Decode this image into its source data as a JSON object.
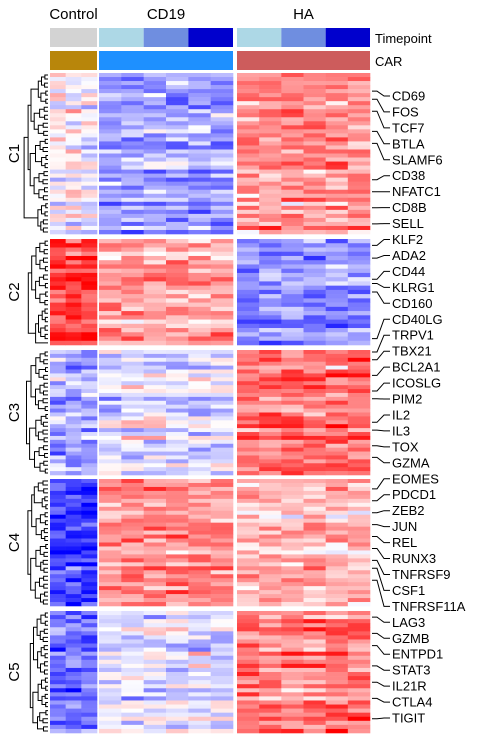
{
  "chart_data": {
    "type": "heatmap",
    "title": "",
    "column_groups": [
      {
        "label": "Control",
        "columns": 3,
        "car": "control"
      },
      {
        "label": "CD19",
        "columns": 6,
        "car": "CD19"
      },
      {
        "label": "HA",
        "columns": 6,
        "car": "HA"
      }
    ],
    "annotation_tracks": [
      {
        "label": "Timepoint",
        "values": [
          "none",
          "early",
          "mid",
          "late",
          "early",
          "mid",
          "late"
        ]
      },
      {
        "label": "CAR",
        "values": [
          "Control",
          "CD19",
          "HA"
        ]
      }
    ],
    "annotation_colors": {
      "timepoint": {
        "none": "#d3d3d3",
        "early": "#add8e6",
        "mid": "#6f8ee0",
        "late": "#0000cd"
      },
      "car": {
        "Control": "#b8860b",
        "CD19": "#1e90ff",
        "HA": "#cd5c5c"
      }
    },
    "color_scale": {
      "low": "#0000ff",
      "mid": "#ffffff",
      "high": "#ff0000"
    },
    "clusters": [
      {
        "label": "C1",
        "rows": 40,
        "pattern": {
          "control": 0.0,
          "CD19": -0.35,
          "HA": 0.45
        }
      },
      {
        "label": "C2",
        "rows": 25,
        "pattern": {
          "control": 0.75,
          "CD19": 0.35,
          "HA": -0.45
        }
      },
      {
        "label": "C3",
        "rows": 32,
        "pattern": {
          "control": -0.35,
          "CD19": -0.15,
          "HA": 0.55
        }
      },
      {
        "label": "C4",
        "rows": 32,
        "pattern": {
          "control": -0.75,
          "CD19": 0.45,
          "HA": 0.3
        }
      },
      {
        "label": "C5",
        "rows": 30,
        "pattern": {
          "control": -0.55,
          "CD19": -0.1,
          "HA": 0.55
        }
      }
    ],
    "gene_labels": [
      {
        "name": "CD69",
        "cluster": 0,
        "row": 4
      },
      {
        "name": "FOS",
        "cluster": 0,
        "row": 6
      },
      {
        "name": "TCF7",
        "cluster": 0,
        "row": 9
      },
      {
        "name": "BTLA",
        "cluster": 0,
        "row": 14
      },
      {
        "name": "SLAMF6",
        "cluster": 0,
        "row": 17
      },
      {
        "name": "CD38",
        "cluster": 0,
        "row": 26
      },
      {
        "name": "NFATC1",
        "cluster": 0,
        "row": 29
      },
      {
        "name": "CD8B",
        "cluster": 0,
        "row": 33
      },
      {
        "name": "SELL",
        "cluster": 0,
        "row": 37
      },
      {
        "name": "KLF2",
        "cluster": 1,
        "row": 1
      },
      {
        "name": "ADA2",
        "cluster": 1,
        "row": 4
      },
      {
        "name": "CD44",
        "cluster": 1,
        "row": 9
      },
      {
        "name": "KLRG1",
        "cluster": 1,
        "row": 10
      },
      {
        "name": "CD160",
        "cluster": 1,
        "row": 12
      },
      {
        "name": "CD40LG",
        "cluster": 1,
        "row": 23
      },
      {
        "name": "TRPV1",
        "cluster": 2,
        "row": 0
      },
      {
        "name": "TBX21",
        "cluster": 2,
        "row": 2
      },
      {
        "name": "BCL2A1",
        "cluster": 2,
        "row": 6
      },
      {
        "name": "ICOSLG",
        "cluster": 2,
        "row": 10
      },
      {
        "name": "PIM2",
        "cluster": 2,
        "row": 12
      },
      {
        "name": "IL2",
        "cluster": 2,
        "row": 18
      },
      {
        "name": "IL3",
        "cluster": 2,
        "row": 20
      },
      {
        "name": "TOX",
        "cluster": 2,
        "row": 24
      },
      {
        "name": "GZMA",
        "cluster": 2,
        "row": 27
      },
      {
        "name": "EOMES",
        "cluster": 3,
        "row": 2
      },
      {
        "name": "PDCD1",
        "cluster": 3,
        "row": 5
      },
      {
        "name": "ZEB2",
        "cluster": 3,
        "row": 8
      },
      {
        "name": "JUN",
        "cluster": 3,
        "row": 11
      },
      {
        "name": "REL",
        "cluster": 3,
        "row": 14
      },
      {
        "name": "RUNX3",
        "cluster": 3,
        "row": 17
      },
      {
        "name": "TNFRSF9",
        "cluster": 3,
        "row": 20
      },
      {
        "name": "CSF1",
        "cluster": 3,
        "row": 22
      },
      {
        "name": "TNFRSF11A",
        "cluster": 3,
        "row": 25
      },
      {
        "name": "LAG3",
        "cluster": 4,
        "row": 1
      },
      {
        "name": "GZMB",
        "cluster": 4,
        "row": 5
      },
      {
        "name": "ENTPD1",
        "cluster": 4,
        "row": 8
      },
      {
        "name": "STAT3",
        "cluster": 4,
        "row": 13
      },
      {
        "name": "IL21R",
        "cluster": 4,
        "row": 17
      },
      {
        "name": "CTLA4",
        "cluster": 4,
        "row": 21
      },
      {
        "name": "TIGIT",
        "cluster": 4,
        "row": 26
      }
    ]
  }
}
